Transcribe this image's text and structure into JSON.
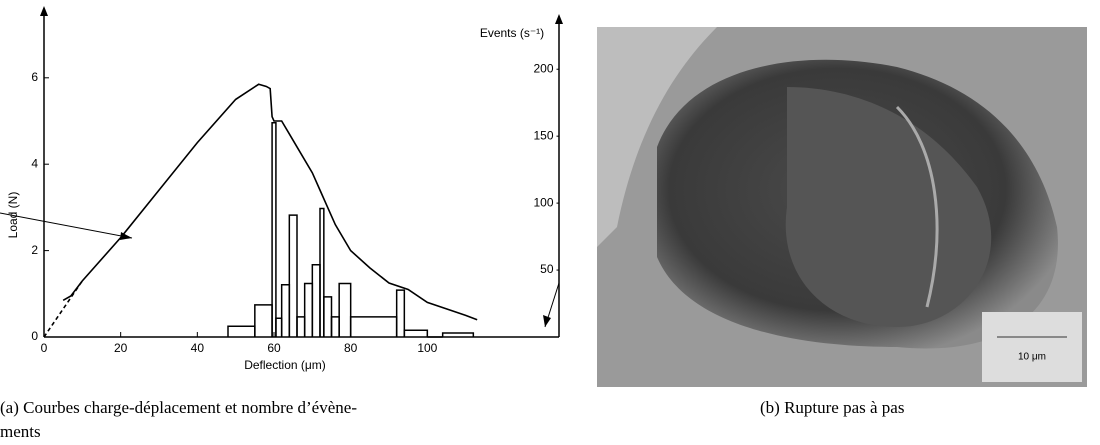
{
  "chart_data": {
    "type": "line",
    "xlabel": "Deflection (μm)",
    "ylabel": "Load (N)",
    "y2label": "Events (s⁻¹)",
    "xlim": [
      0,
      135
    ],
    "xticks": [
      0,
      20,
      40,
      60,
      80,
      100
    ],
    "ylim": [
      0,
      7.5
    ],
    "yticks": [
      0,
      2,
      4,
      6
    ],
    "y2lim": [
      0,
      242
    ],
    "y2ticks": [
      50,
      100,
      150,
      200
    ],
    "series": [
      {
        "color": "#000000",
        "x": [
          5,
          7,
          10,
          20,
          30,
          40,
          50,
          56,
          58,
          59,
          59.5,
          60,
          62,
          64,
          66,
          70,
          72,
          74,
          76,
          80,
          85,
          90,
          95,
          100,
          105,
          110,
          113
        ],
        "values": [
          0.85,
          0.95,
          1.3,
          2.3,
          3.4,
          4.5,
          5.5,
          5.85,
          5.8,
          5.75,
          5.1,
          5.0,
          5.0,
          4.7,
          4.4,
          3.8,
          3.4,
          3.0,
          2.6,
          2.0,
          1.6,
          1.25,
          1.1,
          0.8,
          0.65,
          0.5,
          0.4
        ]
      },
      {
        "color": "#000000",
        "dashed": true,
        "x": [
          0,
          10
        ],
        "values": [
          0,
          1.3
        ]
      }
    ],
    "histogram": {
      "axis": "y2",
      "color": "#000000",
      "bins": [
        48,
        55,
        59.5,
        60.5,
        62,
        64,
        66,
        68,
        70,
        72,
        73,
        75,
        77,
        80,
        92,
        94,
        100,
        104,
        112
      ],
      "values": [
        8,
        24,
        160,
        14,
        39,
        91,
        15,
        40,
        54,
        96,
        30,
        15,
        40,
        15,
        35,
        5,
        0,
        3
      ]
    }
  },
  "figure": {
    "caption_a": "(a) Courbes charge-déplacement et nombre d’évène-",
    "caption_a2": "ments",
    "caption_b": "(b) Rupture pas à pas",
    "scale_bar": "10 μm"
  }
}
